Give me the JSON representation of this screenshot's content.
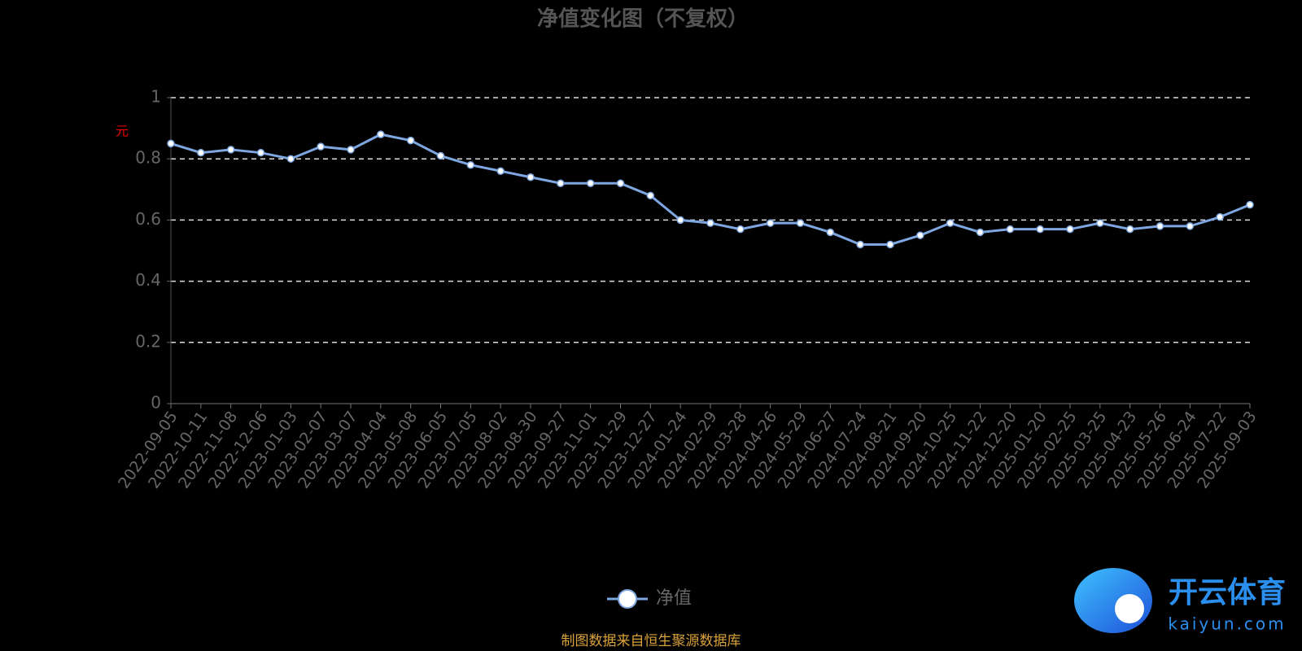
{
  "chart_data": {
    "type": "line",
    "title": "净值变化图（不复权）",
    "y_label": "元",
    "x": [
      "2022-09-05",
      "2022-10-11",
      "2022-11-08",
      "2022-12-06",
      "2023-01-03",
      "2023-02-07",
      "2023-03-07",
      "2023-04-04",
      "2023-05-08",
      "2023-06-05",
      "2023-07-05",
      "2023-08-02",
      "2023-08-30",
      "2023-09-27",
      "2023-11-01",
      "2023-11-29",
      "2023-12-27",
      "2024-01-24",
      "2024-02-29",
      "2024-03-28",
      "2024-04-26",
      "2024-05-29",
      "2024-06-27",
      "2024-07-24",
      "2024-08-21",
      "2024-09-20",
      "2024-10-25",
      "2024-11-22",
      "2024-12-20",
      "2025-01-20",
      "2025-02-25",
      "2025-03-25",
      "2025-04-23",
      "2025-05-26",
      "2025-06-24",
      "2025-07-22",
      "2025-09-03"
    ],
    "series": [
      {
        "name": "净值",
        "color": "#7ea6e0",
        "values": [
          0.85,
          0.82,
          0.83,
          0.82,
          0.8,
          0.84,
          0.83,
          0.88,
          0.86,
          0.81,
          0.78,
          0.76,
          0.74,
          0.72,
          0.72,
          0.72,
          0.68,
          0.6,
          0.59,
          0.57,
          0.59,
          0.59,
          0.56,
          0.52,
          0.52,
          0.55,
          0.59,
          0.56,
          0.57,
          0.57,
          0.57,
          0.59,
          0.57,
          0.58,
          0.58,
          0.61,
          0.65
        ]
      }
    ],
    "ylim": [
      0,
      1
    ],
    "yticks": [
      0,
      0.2,
      0.4,
      0.6,
      0.8,
      1
    ],
    "grid": true,
    "source": "制图数据来自恒生聚源数据库"
  },
  "watermark": {
    "brand": "开云体育",
    "site": "kaiyun.com"
  }
}
